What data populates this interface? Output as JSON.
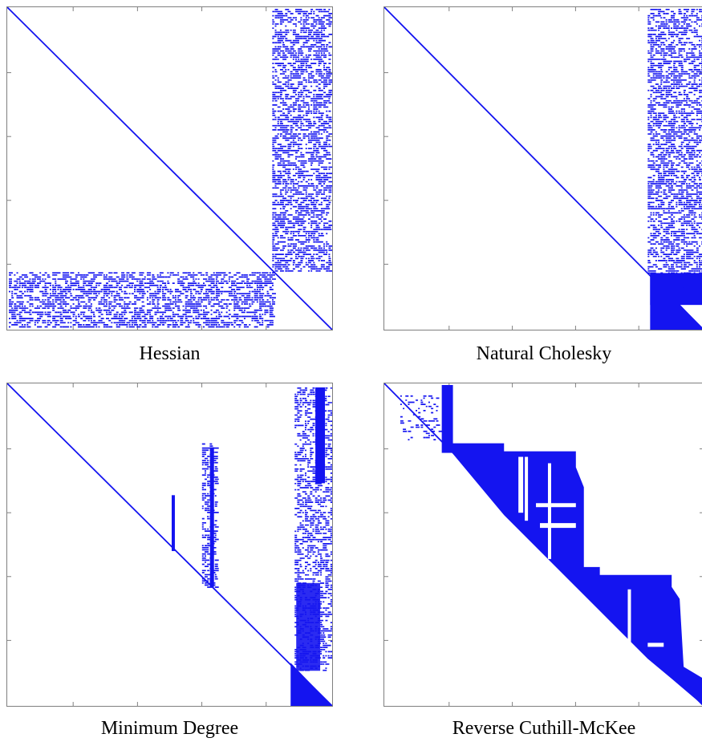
{
  "colors": {
    "nonzero": "#1414f0",
    "axis": "#7f7f7f",
    "background": "#ffffff"
  },
  "panels": [
    {
      "id": "hessian",
      "caption": "Hessian"
    },
    {
      "id": "natural-cholesky",
      "caption": "Natural Cholesky"
    },
    {
      "id": "minimum-degree",
      "caption": "Minimum Degree"
    },
    {
      "id": "reverse-cuthill-mckee",
      "caption": "Reverse Cuthill-McKee"
    }
  ]
}
